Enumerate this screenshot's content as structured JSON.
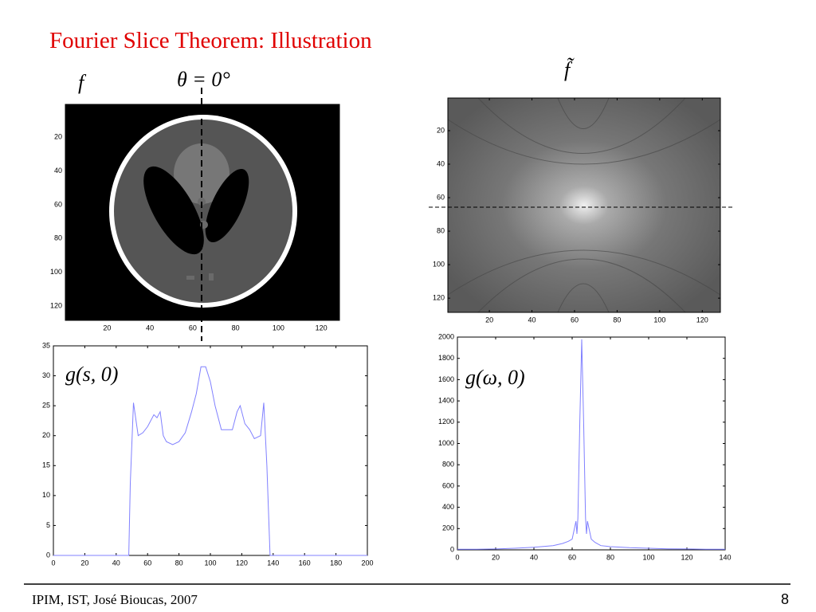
{
  "title": "Fourier Slice Theorem: Illustration",
  "footer": {
    "left": "IPIM, IST, José Bioucas, 2007",
    "page": "8"
  },
  "chart_data": [
    {
      "type": "image",
      "label": "f",
      "annotation": "θ = 0°",
      "xlim": [
        0.5,
        128.5
      ],
      "ylim": [
        128.5,
        0.5
      ],
      "xticks": [
        20,
        40,
        60,
        80,
        100,
        120
      ],
      "yticks": [
        20,
        40,
        60,
        80,
        100,
        120
      ]
    },
    {
      "type": "image",
      "label": "f̃",
      "xlim": [
        0.5,
        128.5
      ],
      "ylim": [
        128.5,
        0.5
      ],
      "xticks": [
        20,
        40,
        60,
        80,
        100,
        120
      ],
      "yticks": [
        20,
        40,
        60,
        80,
        100,
        120
      ]
    },
    {
      "type": "line",
      "label": "g(s, 0)",
      "color": "#8080ff",
      "x": [
        0,
        20,
        40,
        48,
        49,
        51,
        54,
        57,
        60,
        64,
        66,
        68,
        70,
        72,
        76,
        80,
        84,
        88,
        91,
        94,
        97,
        100,
        103,
        107,
        110,
        114,
        117,
        119,
        122,
        125,
        128,
        132,
        134,
        136,
        138,
        160,
        180,
        200
      ],
      "values": [
        0,
        0,
        0,
        0,
        12,
        25.5,
        20,
        20.5,
        21.5,
        23.5,
        23,
        24,
        20,
        19,
        18.5,
        19,
        20.5,
        24,
        27,
        31.5,
        31.5,
        29,
        25,
        21,
        21,
        21,
        24,
        25,
        22,
        21,
        19.5,
        20,
        25.5,
        15,
        0,
        0,
        0,
        0
      ],
      "xlim": [
        0,
        200
      ],
      "ylim": [
        0,
        35
      ],
      "xticks": [
        0,
        20,
        40,
        60,
        80,
        100,
        120,
        140,
        160,
        180,
        200
      ],
      "yticks": [
        0,
        5,
        10,
        15,
        20,
        25,
        30,
        35
      ]
    },
    {
      "type": "line",
      "label": "g(ω, 0)",
      "color": "#8080ff",
      "x": [
        0,
        10,
        20,
        30,
        40,
        50,
        55,
        58,
        60,
        62,
        62.5,
        63,
        64,
        65,
        66,
        67,
        67.5,
        68,
        70,
        72,
        75,
        80,
        90,
        100,
        110,
        120,
        130,
        140
      ],
      "values": [
        5,
        5,
        8,
        15,
        25,
        40,
        60,
        80,
        100,
        270,
        150,
        300,
        1200,
        1980,
        1200,
        300,
        150,
        270,
        100,
        70,
        40,
        30,
        20,
        15,
        10,
        8,
        5,
        5
      ],
      "xlim": [
        0,
        140
      ],
      "ylim": [
        0,
        2000
      ],
      "xticks": [
        0,
        20,
        40,
        60,
        80,
        100,
        120,
        140
      ],
      "yticks": [
        0,
        200,
        400,
        600,
        800,
        1000,
        1200,
        1400,
        1600,
        1800,
        2000
      ]
    }
  ]
}
